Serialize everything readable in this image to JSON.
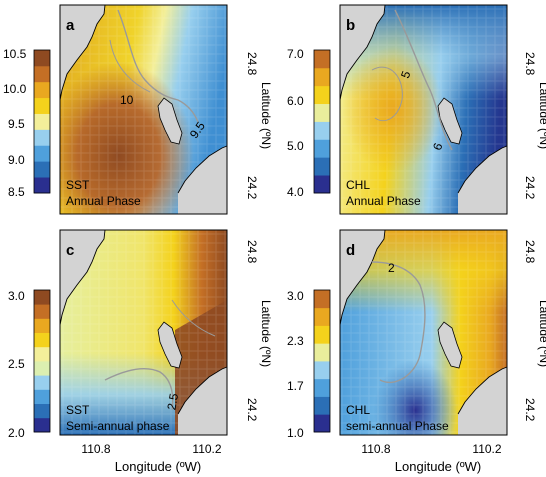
{
  "figure": {
    "x_axis_label": "Longitude (ºW)",
    "y_axis_label": "Latitude (ºN)",
    "lon_ticks": [
      "110.8",
      "110.2"
    ],
    "lat_ticks": [
      "24.8",
      "24.2"
    ]
  },
  "panels": [
    {
      "letter": "a",
      "variable": "SST",
      "caption": "Annual Phase",
      "colorbar_ticks": [
        "10.5",
        "10.0",
        "9.5",
        "9.0",
        "8.5"
      ],
      "contour_labels": [
        "10",
        "9.5"
      ],
      "palette": [
        "#2a2f8f",
        "#2b6fb6",
        "#4fa0dc",
        "#98cfee",
        "#f3ef9a",
        "#f4d21c",
        "#e9a820",
        "#c46f25",
        "#8f4a21"
      ],
      "land_color": "#d3d3d3"
    },
    {
      "letter": "b",
      "variable": "CHL",
      "caption": "Annual Phase",
      "colorbar_ticks": [
        "7.0",
        "6.0",
        "5.0",
        "4.0"
      ],
      "contour_labels": [
        "5",
        "6"
      ],
      "palette": [
        "#2a2f8f",
        "#2b6fb6",
        "#4fa0dc",
        "#98cfee",
        "#e9ee9c",
        "#f4d21c",
        "#e9a820",
        "#c46f25"
      ],
      "land_color": "#d3d3d3"
    },
    {
      "letter": "c",
      "variable": "SST",
      "caption": "Semi-annual phase",
      "colorbar_ticks": [
        "3.0",
        "2.5",
        "2.0"
      ],
      "contour_labels": [
        "2.5"
      ],
      "palette": [
        "#2a2f8f",
        "#2b6fb6",
        "#4fa0dc",
        "#98cfee",
        "#dcefb0",
        "#f3ef9a",
        "#f4d21c",
        "#e9a820",
        "#c46f25",
        "#8f4a21"
      ],
      "land_color": "#d3d3d3"
    },
    {
      "letter": "d",
      "variable": "CHL",
      "caption": "semi-annual Phase",
      "colorbar_ticks": [
        "3.0",
        "2.3",
        "1.7",
        "1.0"
      ],
      "contour_labels": [
        "2"
      ],
      "palette": [
        "#2a2f8f",
        "#2b6fb6",
        "#4fa0dc",
        "#98cfee",
        "#e9ee9c",
        "#f4d21c",
        "#e9a820",
        "#c46f25"
      ],
      "land_color": "#d3d3d3"
    }
  ]
}
